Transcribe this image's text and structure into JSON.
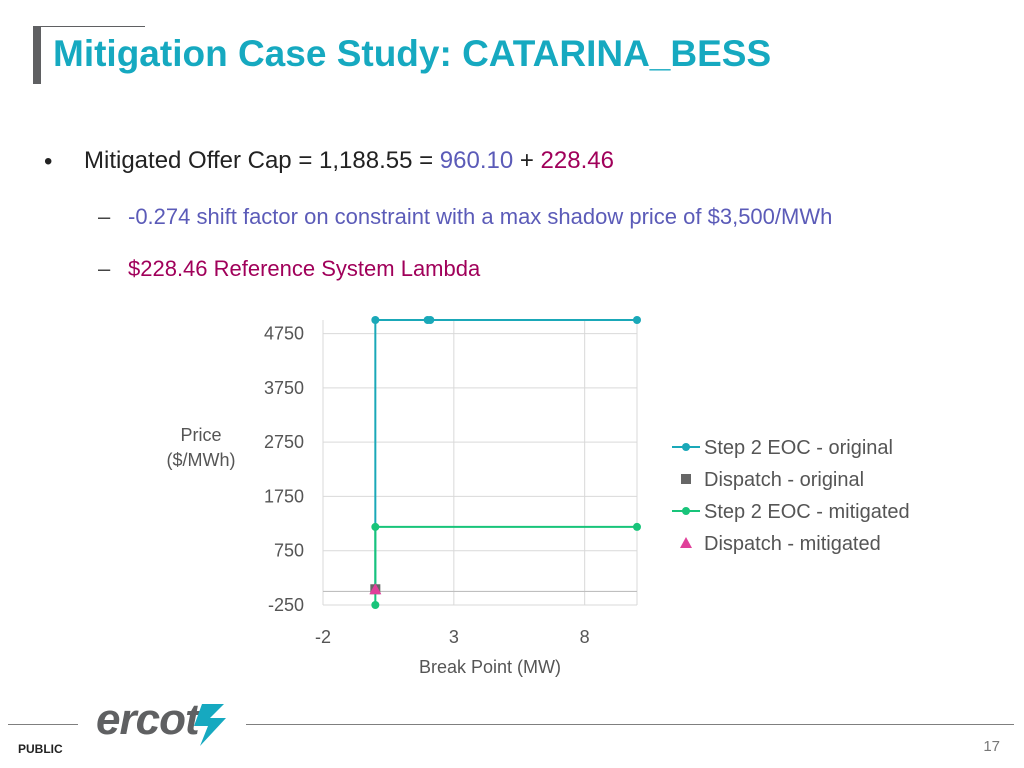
{
  "slide": {
    "title": "Mitigation Case Study: CATARINA_BESS",
    "bullet_marker": "•",
    "bullet": {
      "prefix": "Mitigated Offer Cap = 1,188.55 = ",
      "part1": "960.10",
      "plus": " + ",
      "part2": "228.46"
    },
    "sub_marker": "–",
    "sub1": "-0.274 shift factor on constraint with a max shadow price of $3,500/MWh",
    "sub2": "$228.46 Reference System Lambda",
    "footer_label": "PUBLIC",
    "page_number": "17",
    "logo_text": "ercot"
  },
  "colors": {
    "title": "#16a9c0",
    "blue_value": "#5b5bb8",
    "maroon_value": "#a0005a",
    "eoc_original": "#1aa8b8",
    "dispatch_original": "#666666",
    "eoc_mitigated": "#18c47a",
    "dispatch_mitigated": "#e0409a"
  },
  "chart_data": {
    "type": "scatter",
    "xlabel": "Break Point (MW)",
    "ylabel": "Price ($/MWh)",
    "ylabel_lines": [
      "Price",
      "($/MWh)"
    ],
    "xlim": [
      -2,
      10
    ],
    "ylim": [
      -250,
      5000
    ],
    "x_ticks": [
      -2,
      3,
      8
    ],
    "y_ticks": [
      -250,
      750,
      1750,
      2750,
      3750,
      4750
    ],
    "grid": true,
    "legend_position": "right",
    "series": [
      {
        "name": "Step 2 EOC - original",
        "marker": "circle",
        "connected": true,
        "points": [
          [
            0,
            0
          ],
          [
            0,
            5000
          ],
          [
            2,
            5000
          ],
          [
            2.1,
            5000
          ],
          [
            10,
            5000
          ]
        ]
      },
      {
        "name": "Dispatch - original",
        "marker": "square",
        "connected": false,
        "points": [
          [
            0,
            40
          ]
        ]
      },
      {
        "name": "Step 2 EOC - mitigated",
        "marker": "circle",
        "connected": true,
        "points": [
          [
            0,
            -250
          ],
          [
            0,
            1188.55
          ],
          [
            10,
            1188.55
          ]
        ]
      },
      {
        "name": "Dispatch - mitigated",
        "marker": "triangle",
        "connected": false,
        "points": [
          [
            0,
            40
          ]
        ]
      }
    ]
  }
}
